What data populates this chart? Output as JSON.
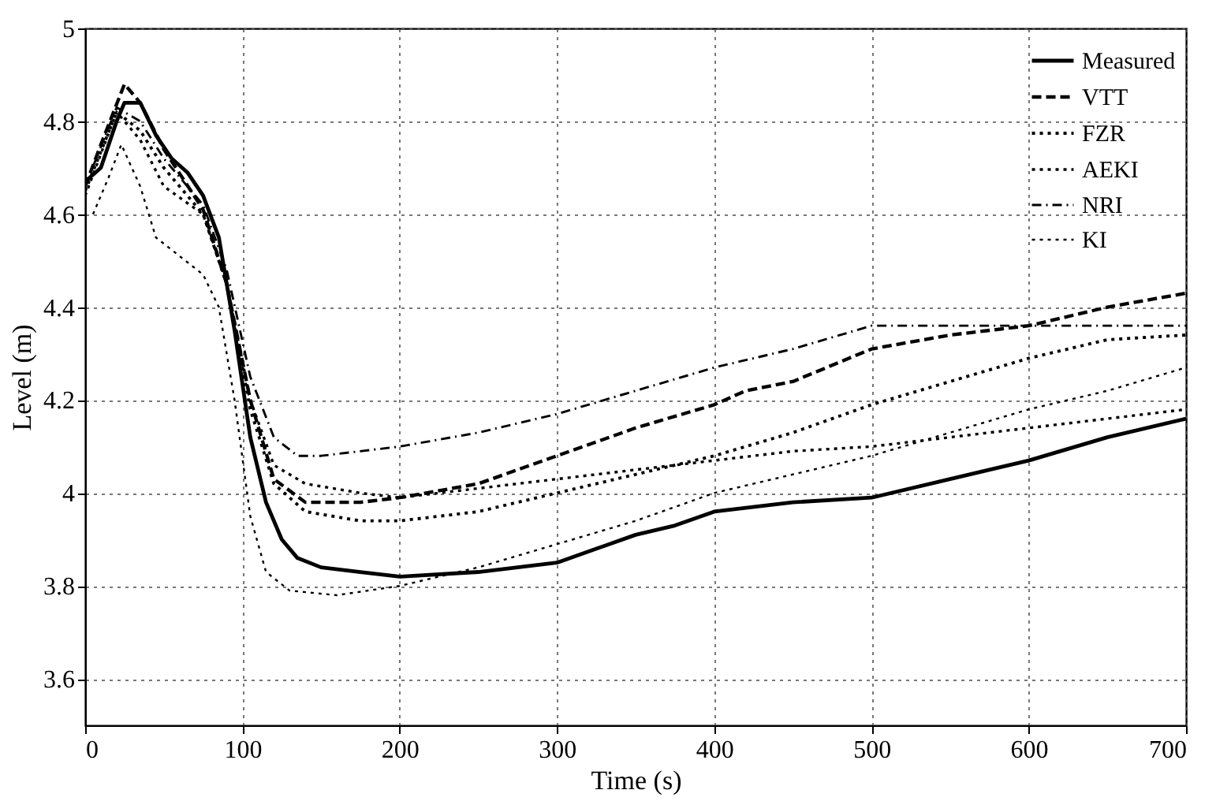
{
  "chart_data": {
    "type": "line",
    "xlabel": "Time (s)",
    "ylabel": "Level (m)",
    "xlim": [
      0,
      700
    ],
    "xticks": [
      0,
      100,
      200,
      300,
      400,
      500,
      600,
      700
    ],
    "ylim": [
      3.5,
      5
    ],
    "yticks": [
      3.6,
      3.8,
      4,
      4.2,
      4.4,
      4.6,
      4.8,
      5
    ],
    "grid": true,
    "legend": "top right",
    "marker": "none",
    "series": [
      {
        "name": "Measured",
        "color": "#000000",
        "line_style": "solid",
        "x": [
          0,
          10,
          20,
          25,
          35,
          45,
          55,
          65,
          75,
          85,
          95,
          105,
          115,
          125,
          135,
          150,
          175,
          200,
          250,
          300,
          325,
          350,
          375,
          400,
          450,
          500,
          550,
          600,
          650,
          700
        ],
        "values": [
          4.67,
          4.7,
          4.8,
          4.84,
          4.84,
          4.77,
          4.72,
          4.69,
          4.64,
          4.55,
          4.35,
          4.12,
          3.98,
          3.9,
          3.86,
          3.84,
          3.83,
          3.82,
          3.83,
          3.85,
          3.88,
          3.91,
          3.93,
          3.96,
          3.98,
          3.99,
          4.03,
          4.07,
          4.12,
          4.16
        ]
      },
      {
        "name": "VTT",
        "color": "#000000",
        "line_style": "dashed",
        "x": [
          0,
          10,
          25,
          35,
          50,
          75,
          90,
          105,
          120,
          140,
          175,
          200,
          250,
          300,
          350,
          400,
          420,
          450,
          500,
          550,
          600,
          650,
          700
        ],
        "values": [
          4.66,
          4.75,
          4.88,
          4.84,
          4.74,
          4.61,
          4.45,
          4.2,
          4.03,
          3.98,
          3.98,
          3.99,
          4.02,
          4.08,
          4.14,
          4.19,
          4.22,
          4.24,
          4.31,
          4.34,
          4.36,
          4.4,
          4.43
        ]
      },
      {
        "name": "FZR",
        "color": "#000000",
        "line_style": "dotted",
        "x": [
          0,
          20,
          35,
          50,
          75,
          90,
          105,
          120,
          140,
          175,
          200,
          250,
          300,
          350,
          400,
          450,
          500,
          550,
          600,
          650,
          700
        ],
        "values": [
          4.65,
          4.82,
          4.78,
          4.7,
          4.6,
          4.45,
          4.18,
          4.02,
          3.96,
          3.94,
          3.94,
          3.96,
          4.0,
          4.04,
          4.08,
          4.13,
          4.19,
          4.24,
          4.29,
          4.33,
          4.34
        ]
      },
      {
        "name": "AEKI",
        "color": "#000000",
        "line_style": "dotted",
        "x": [
          0,
          20,
          35,
          50,
          75,
          90,
          105,
          120,
          140,
          175,
          200,
          250,
          300,
          350,
          400,
          450,
          500,
          550,
          600,
          650,
          700
        ],
        "values": [
          4.64,
          4.82,
          4.76,
          4.66,
          4.6,
          4.45,
          4.2,
          4.06,
          4.02,
          4.0,
          3.99,
          4.01,
          4.03,
          4.05,
          4.07,
          4.09,
          4.1,
          4.12,
          4.14,
          4.16,
          4.18
        ]
      },
      {
        "name": "NRI",
        "color": "#000000",
        "line_style": "dashdot",
        "x": [
          0,
          20,
          35,
          50,
          75,
          90,
          105,
          120,
          135,
          150,
          200,
          250,
          300,
          350,
          400,
          450,
          500,
          550,
          600,
          650,
          700
        ],
        "values": [
          4.66,
          4.83,
          4.8,
          4.72,
          4.62,
          4.48,
          4.25,
          4.12,
          4.08,
          4.08,
          4.1,
          4.13,
          4.17,
          4.22,
          4.27,
          4.31,
          4.36,
          4.36,
          4.36,
          4.36,
          4.36
        ]
      },
      {
        "name": "KI",
        "color": "#000000",
        "line_style": "dotted",
        "x": [
          5,
          15,
          23,
          35,
          45,
          60,
          75,
          85,
          95,
          105,
          115,
          130,
          160,
          200,
          250,
          300,
          350,
          400,
          450,
          500,
          550,
          600,
          650,
          700
        ],
        "values": [
          4.6,
          4.68,
          4.75,
          4.66,
          4.55,
          4.51,
          4.47,
          4.4,
          4.2,
          3.95,
          3.83,
          3.79,
          3.78,
          3.8,
          3.84,
          3.89,
          3.94,
          4.0,
          4.04,
          4.08,
          4.13,
          4.18,
          4.22,
          4.27
        ]
      }
    ]
  }
}
